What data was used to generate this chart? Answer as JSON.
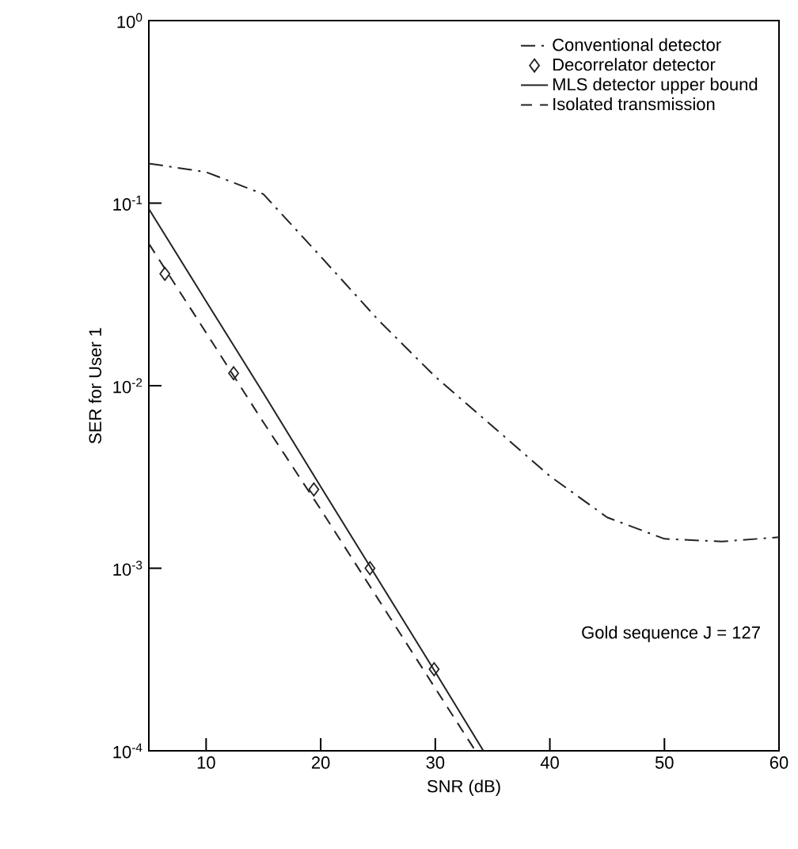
{
  "chart_data": {
    "type": "line",
    "xlabel": "SNR (dB)",
    "ylabel": "SER for User 1",
    "log": "y",
    "xlim": [
      5,
      60
    ],
    "xticks": [
      10,
      20,
      30,
      40,
      50,
      60
    ],
    "ylim": [
      0.0001,
      1
    ],
    "yticks": [
      {
        "value": 0.0001,
        "label": "10$^{-4}$"
      },
      {
        "value": 0.001,
        "label": "10$^{-3}$"
      },
      {
        "value": 0.01,
        "label": "10$^{-2}$"
      },
      {
        "value": 0.1,
        "label": "10$^{-1}$"
      },
      {
        "value": 1,
        "label": "10$^{0}$"
      }
    ],
    "legend": "top right",
    "grid": false,
    "annotations": [
      "Gold sequence J = 127"
    ],
    "series": [
      {
        "name": "Conventional detector",
        "color": "#222222",
        "line_style": "dashdot",
        "x": [
          5,
          10,
          15,
          20,
          25,
          30,
          35,
          40,
          45,
          50,
          55,
          60
        ],
        "values": [
          0.165,
          0.148,
          0.112,
          0.051,
          0.023,
          0.0112,
          0.006,
          0.0032,
          0.0019,
          0.00145,
          0.0014,
          0.00148
        ]
      },
      {
        "name": "Decorrelator detector",
        "type": "scatter",
        "marker": "diamond",
        "color": "#222222",
        "x": [
          6.4,
          12.4,
          19.4,
          24.3,
          29.9
        ],
        "values": [
          0.041,
          0.0117,
          0.0027,
          0.001,
          0.00028
        ]
      },
      {
        "name": "MLS detector upper bound",
        "color": "#222222",
        "line_style": "solid",
        "x": [
          5,
          10,
          15,
          20,
          25,
          30,
          34.2
        ],
        "values": [
          0.093,
          0.029,
          0.0091,
          0.0028,
          0.00087,
          0.00027,
          0.0001
        ]
      },
      {
        "name": "Isolated transmission",
        "color": "#222222",
        "line_style": "dashed",
        "x": [
          5,
          10,
          15,
          20,
          25,
          30,
          33.5
        ],
        "values": [
          0.06,
          0.0195,
          0.0063,
          0.0021,
          0.00068,
          0.00022,
          0.0001
        ]
      }
    ]
  }
}
